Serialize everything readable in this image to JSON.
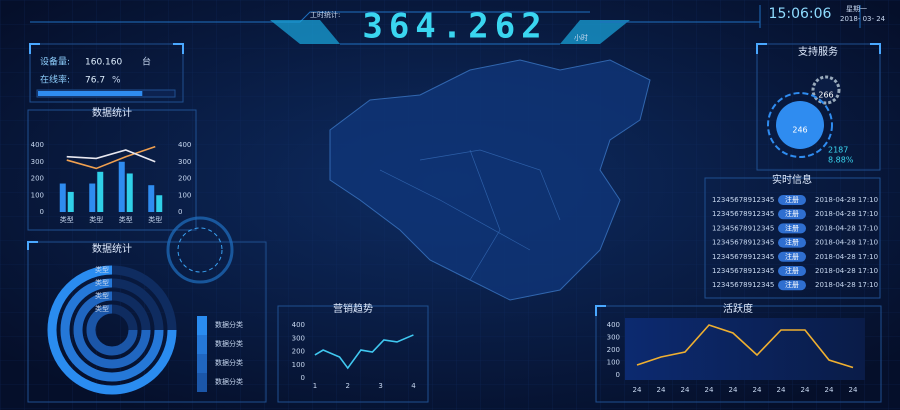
{
  "header": {
    "work_label": "工时统计:",
    "work_value": "364.262",
    "work_unit": "小时",
    "time": "15:06:06",
    "weekday": "星期一",
    "date": "2018- 03- 24"
  },
  "devices": {
    "count_label": "设备量:",
    "count": "160.160",
    "count_unit": "台",
    "online_label": "在线率:",
    "online": 76.7,
    "online_unit": "%"
  },
  "stats_chart": {
    "type": "bar",
    "title": "数据统计",
    "categories": [
      "类型",
      "类型",
      "类型",
      "类型"
    ],
    "bar_series": [
      {
        "color": "#2f8cf0",
        "values": [
          170,
          170,
          300,
          160
        ]
      },
      {
        "color": "#30d0e8",
        "values": [
          120,
          240,
          230,
          100
        ]
      }
    ],
    "line_series": [
      {
        "color": "#f0a050",
        "values": [
          310,
          260,
          330,
          390
        ]
      },
      {
        "color": "#e8e8f0",
        "values": [
          330,
          320,
          370,
          300
        ]
      }
    ],
    "ylim": [
      0,
      400
    ],
    "yticks": [
      0,
      100,
      200,
      300,
      400
    ],
    "y2lim": [
      0,
      400
    ],
    "y2ticks": [
      0,
      100,
      200,
      300,
      400
    ]
  },
  "ring_chart": {
    "type": "radial_bar",
    "title": "数据统计",
    "categories": [
      "类型",
      "类型",
      "类型",
      "类型"
    ],
    "values": [
      75,
      75,
      75,
      75
    ],
    "colors": [
      "#2a8cf0",
      "#2578d8",
      "#2066c0",
      "#1b56a8"
    ],
    "legend": [
      "数据分类",
      "数据分类",
      "数据分类",
      "数据分类"
    ]
  },
  "sales_trend": {
    "type": "line",
    "title": "营销趋势",
    "x": [
      1,
      1.25,
      1.75,
      2,
      2.4,
      2.75,
      3.1,
      3.5,
      4
    ],
    "values": [
      174,
      211,
      158,
      75,
      211,
      196,
      287,
      272,
      325
    ],
    "color": "#40c8f0",
    "xlim": [
      0.85,
      4.2
    ],
    "xticks": [
      1,
      2,
      3,
      4
    ],
    "ylim": [
      0,
      400
    ],
    "yticks": [
      0,
      100,
      200,
      300,
      400
    ]
  },
  "support": {
    "title": "支持服务",
    "gear_value": 266,
    "center_value": 246,
    "total": 2187,
    "rate": "8.88%"
  },
  "realtime": {
    "title": "实时信息",
    "rows": [
      [
        "12345678912345",
        "注册",
        "2018-04-28 17:10"
      ],
      [
        "12345678912345",
        "注册",
        "2018-04-28 17:10"
      ],
      [
        "12345678912345",
        "注册",
        "2018-04-28 17:10"
      ],
      [
        "12345678912345",
        "注册",
        "2018-04-28 17:10"
      ],
      [
        "12345678912345",
        "注册",
        "2018-04-28 17:10"
      ],
      [
        "12345678912345",
        "注册",
        "2018-04-28 17:10"
      ],
      [
        "12345678912345",
        "注册",
        "2018-04-28 17:10"
      ]
    ]
  },
  "activity": {
    "type": "line",
    "title": "活跃度",
    "categories": [
      "24",
      "24",
      "24",
      "24",
      "24",
      "24",
      "24",
      "24",
      "24",
      "24"
    ],
    "values": [
      80,
      144,
      184,
      400,
      336,
      160,
      360,
      360,
      120,
      60
    ],
    "color": "#f0b030",
    "ylim": [
      0,
      400
    ],
    "yticks": [
      0,
      100,
      200,
      300,
      400
    ]
  }
}
